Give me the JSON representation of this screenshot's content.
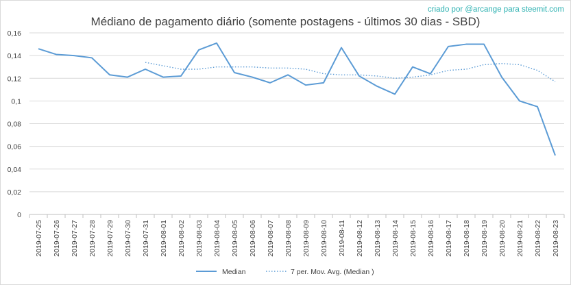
{
  "credit": "criado por @arcange para steemit.com",
  "chart_data": {
    "type": "line",
    "title": "Médiano de pagamento diário (somente postagens - últimos 30 dias - SBD)",
    "xlabel": "",
    "ylabel": "",
    "ylim": [
      0,
      0.16
    ],
    "yticks": [
      "0",
      "0,02",
      "0,04",
      "0,06",
      "0,08",
      "0,1",
      "0,12",
      "0,14",
      "0,16"
    ],
    "grid": true,
    "legend_position": "bottom",
    "categories": [
      "2019-07-25",
      "2019-07-26",
      "2019-07-27",
      "2019-07-28",
      "2019-07-29",
      "2019-07-30",
      "2019-07-31",
      "2019-08-01",
      "2019-08-02",
      "2019-08-03",
      "2019-08-04",
      "2019-08-05",
      "2019-08-06",
      "2019-08-07",
      "2019-08-08",
      "2019-08-09",
      "2019-08-10",
      "2019-08-11",
      "2019-08-12",
      "2019-08-13",
      "2019-08-14",
      "2019-08-15",
      "2019-08-16",
      "2019-08-17",
      "2019-08-18",
      "2019-08-19",
      "2019-08-20",
      "2019-08-21",
      "2019-08-22",
      "2019-08-23"
    ],
    "series": [
      {
        "name": "Median",
        "style": "solid",
        "color": "#5b9bd5",
        "values": [
          0.146,
          0.141,
          0.14,
          0.138,
          0.123,
          0.121,
          0.128,
          0.121,
          0.122,
          0.145,
          0.151,
          0.125,
          0.121,
          0.116,
          0.123,
          0.114,
          0.116,
          0.147,
          0.122,
          0.113,
          0.106,
          0.13,
          0.124,
          0.148,
          0.15,
          0.15,
          0.121,
          0.1,
          0.095,
          0.052
        ]
      },
      {
        "name": "7 per. Mov. Avg. (Median )",
        "style": "dotted",
        "color": "#5b9bd5",
        "values": [
          null,
          null,
          null,
          null,
          null,
          null,
          0.134,
          0.131,
          0.128,
          0.128,
          0.13,
          0.13,
          0.13,
          0.129,
          0.129,
          0.128,
          0.124,
          0.123,
          0.123,
          0.122,
          0.12,
          0.121,
          0.123,
          0.127,
          0.128,
          0.132,
          0.133,
          0.132,
          0.127,
          0.117
        ]
      }
    ]
  }
}
